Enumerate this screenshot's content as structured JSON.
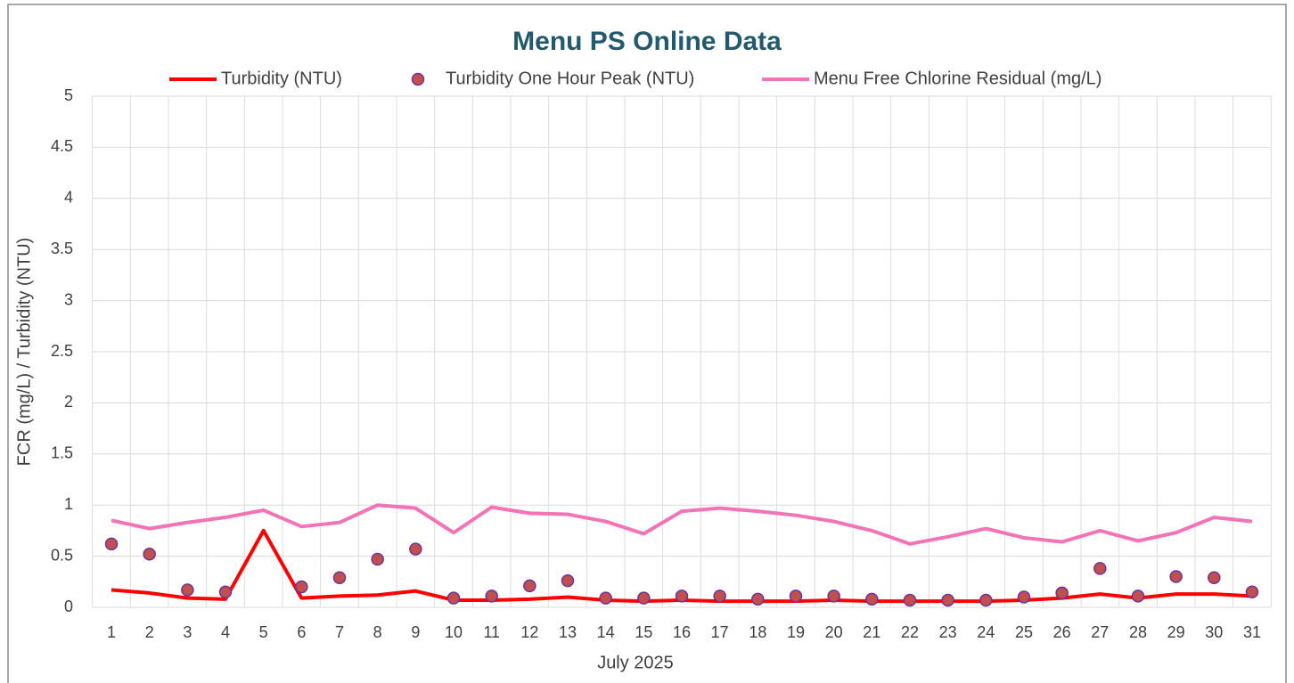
{
  "chart_data": {
    "type": "line",
    "title": "Menu PS Online Data",
    "xlabel": "July 2025",
    "ylabel": "FCR (mg/L) / Turbidity (NTU)",
    "categories": [
      "1",
      "2",
      "3",
      "4",
      "5",
      "6",
      "7",
      "8",
      "9",
      "10",
      "11",
      "12",
      "13",
      "14",
      "15",
      "16",
      "17",
      "18",
      "19",
      "20",
      "21",
      "22",
      "23",
      "24",
      "25",
      "26",
      "27",
      "28",
      "29",
      "30",
      "31"
    ],
    "series": [
      {
        "name": "Turbidity (NTU)",
        "type": "line",
        "color": "#ff0000",
        "values": [
          0.17,
          0.14,
          0.09,
          0.08,
          0.75,
          0.09,
          0.11,
          0.12,
          0.16,
          0.07,
          0.07,
          0.08,
          0.1,
          0.07,
          0.06,
          0.07,
          0.06,
          0.06,
          0.06,
          0.07,
          0.06,
          0.06,
          0.06,
          0.06,
          0.07,
          0.09,
          0.13,
          0.09,
          0.13,
          0.13,
          0.11
        ]
      },
      {
        "name": "Turbidity One Hour Peak (NTU)",
        "type": "scatter",
        "color": "#c0504d",
        "edge_color": "#7030a0",
        "values": [
          0.62,
          0.52,
          0.17,
          0.15,
          null,
          0.2,
          0.29,
          0.47,
          0.57,
          0.09,
          0.11,
          0.21,
          0.26,
          0.09,
          0.09,
          0.11,
          0.11,
          0.08,
          0.11,
          0.11,
          0.08,
          0.07,
          0.07,
          0.07,
          0.1,
          0.14,
          0.38,
          0.11,
          0.3,
          0.29,
          0.15
        ]
      },
      {
        "name": "Menu Free Chlorine Residual (mg/L)",
        "type": "line",
        "color": "#f472b6",
        "values": [
          0.85,
          0.77,
          0.83,
          0.88,
          0.95,
          0.79,
          0.83,
          1.0,
          0.97,
          0.73,
          0.98,
          0.92,
          0.91,
          0.84,
          0.72,
          0.94,
          0.97,
          0.94,
          0.9,
          0.84,
          0.75,
          0.62,
          0.69,
          0.77,
          0.68,
          0.64,
          0.75,
          0.65,
          0.73,
          0.88,
          0.84
        ]
      }
    ],
    "ylim": [
      0,
      5
    ],
    "yticks": [
      0,
      0.5,
      1,
      1.5,
      2,
      2.5,
      3,
      3.5,
      4,
      4.5,
      5
    ],
    "grid": true,
    "legend": "top"
  }
}
